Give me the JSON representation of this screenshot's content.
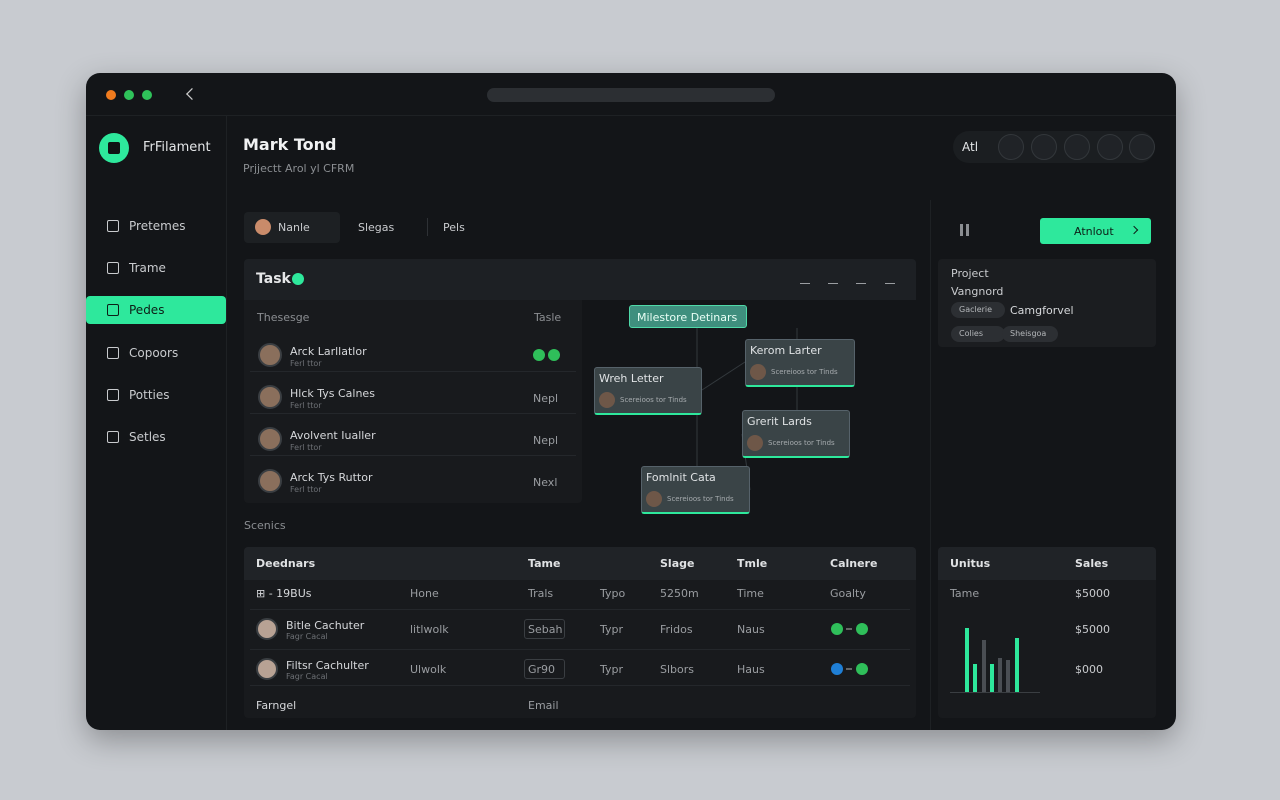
{
  "sidebar": {
    "brand": "FrFilament",
    "nav": [
      "Pretemes",
      "Trame",
      "Pedes",
      "Copoors",
      "Potties",
      "Setles"
    ],
    "active": 2
  },
  "header": {
    "title": "Mark Tond",
    "subtitle": "Prjjectt Arol yl CFRM",
    "toolbar_label": "Atl"
  },
  "filters": [
    "Nanle",
    "Slegas",
    "Pels"
  ],
  "action_button": "Atnlout",
  "task_panel": {
    "title": "Task",
    "columns": [
      "Thesesge",
      "Tasle"
    ],
    "rows": [
      {
        "name": "Arck Larllatlor",
        "sub": "Ferl ttor"
      },
      {
        "name": "Hlck Tys Calnes",
        "sub": "Ferl ttor",
        "status": "Nepl"
      },
      {
        "name": "Avolvent Iualler",
        "sub": "Ferl ttor",
        "status": "Nepl"
      },
      {
        "name": "Arck Tys Ruttor",
        "sub": "Ferl ttor",
        "status": "Nexl"
      }
    ]
  },
  "diagram": {
    "nodes": [
      {
        "label": "Milestore Detinars"
      },
      {
        "label": "Kerom Larter",
        "sub": "Scereioos tor Tinds"
      },
      {
        "label": "Wreh Letter",
        "sub": "Scereioos tor Tinds"
      },
      {
        "label": "Grerit Lards",
        "sub": "Scereioos tor Tinds"
      },
      {
        "label": "Fomlnit Cata",
        "sub": "Scereioos tor Tinds"
      }
    ]
  },
  "section_label": "Scenics",
  "schedule_table": {
    "columns": [
      "Deednars",
      "Tame",
      "Slage",
      "Tmle",
      "Calnere"
    ],
    "rows": [
      {
        "cells": [
          "⊞ - 19BUs",
          "Hone",
          "Trals",
          "Typo",
          "5250m",
          "Time",
          "Goalty"
        ]
      },
      {
        "cells": [
          "Bitle Cachuter",
          "litlwolk",
          "Sebah",
          "Typr",
          "Fridos",
          "Naus",
          null
        ],
        "sub": "Fagr Cacal",
        "badge": "#2fbf5a"
      },
      {
        "cells": [
          "Filtsr Cachulter",
          "Ulwolk",
          "Gr90",
          "Typr",
          "Slbors",
          "Haus",
          null
        ],
        "sub": "Fagr Cacal",
        "badge": "#1f7fd6"
      },
      {
        "cells": [
          "Farngel",
          null,
          "Email",
          null,
          null,
          null,
          null
        ]
      }
    ]
  },
  "project_card": {
    "title": "Project",
    "subtitle": "Vangnord",
    "tags": [
      "Gaclerie",
      "Camgforvel",
      "Colies",
      "Sheisgoa"
    ]
  },
  "sales_card": {
    "columns": [
      "Unitus",
      "Sales"
    ],
    "rows": [
      [
        "Tame",
        "$5000"
      ],
      [
        null,
        "$5000"
      ],
      [
        null,
        "$000"
      ]
    ]
  }
}
